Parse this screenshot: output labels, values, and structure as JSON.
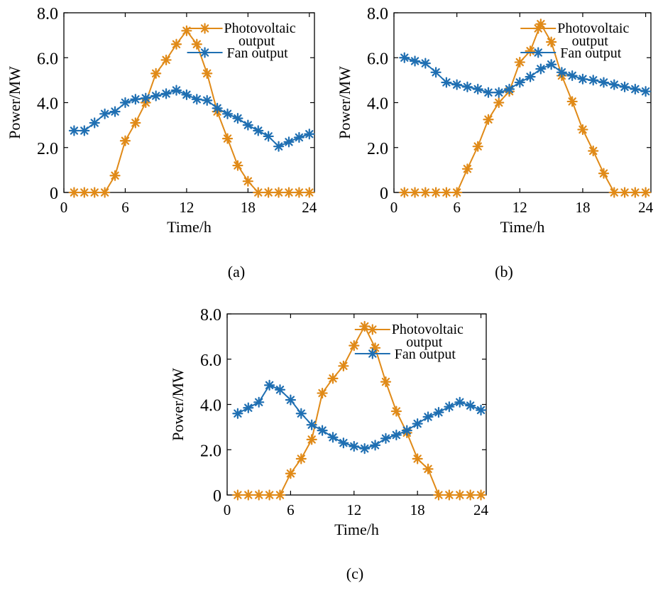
{
  "colors": {
    "pv": "#E08A18",
    "fan": "#1F6FB2"
  },
  "chart_data": [
    {
      "type": "line",
      "caption": "(a)",
      "xlabel": "Time/h",
      "ylabel": "Power/MW",
      "xlim": [
        0,
        24.5
      ],
      "ylim": [
        0,
        8
      ],
      "xticks": [
        "0",
        "6",
        "12",
        "18",
        "24"
      ],
      "yticks": [
        "0",
        "2.0",
        "4.0",
        "6.0",
        "8.0"
      ],
      "legend": [
        "Photovoltaic",
        "output",
        "Fan output"
      ],
      "x": [
        1,
        2,
        3,
        4,
        5,
        6,
        7,
        8,
        9,
        10,
        11,
        12,
        13,
        14,
        15,
        16,
        17,
        18,
        19,
        20,
        21,
        22,
        23,
        24
      ],
      "series": [
        {
          "name": "Photovoltaic output",
          "values": [
            0,
            0,
            0,
            0,
            0.75,
            2.3,
            3.1,
            4.0,
            5.3,
            5.9,
            6.6,
            7.2,
            6.6,
            5.3,
            3.6,
            2.4,
            1.2,
            0.5,
            0,
            0,
            0,
            0,
            0,
            0
          ]
        },
        {
          "name": "Fan output",
          "values": [
            2.75,
            2.75,
            3.1,
            3.5,
            3.6,
            4.0,
            4.15,
            4.2,
            4.3,
            4.4,
            4.55,
            4.35,
            4.15,
            4.1,
            3.75,
            3.5,
            3.3,
            3.0,
            2.75,
            2.5,
            2.05,
            2.25,
            2.45,
            2.6
          ]
        }
      ]
    },
    {
      "type": "line",
      "caption": "(b)",
      "xlabel": "Time/h",
      "ylabel": "Power/MW",
      "xlim": [
        0,
        24.5
      ],
      "ylim": [
        0,
        8
      ],
      "xticks": [
        "0",
        "6",
        "12",
        "18",
        "24"
      ],
      "yticks": [
        "0",
        "2.0",
        "4.0",
        "6.0",
        "8.0"
      ],
      "legend": [
        "Photovoltaic",
        "output",
        "Fan output"
      ],
      "x": [
        1,
        2,
        3,
        4,
        5,
        6,
        7,
        8,
        9,
        10,
        11,
        12,
        13,
        14,
        15,
        16,
        17,
        18,
        19,
        20,
        21,
        22,
        23,
        24
      ],
      "series": [
        {
          "name": "Photovoltaic output",
          "values": [
            0,
            0,
            0,
            0,
            0,
            0,
            1.05,
            2.05,
            3.25,
            4.0,
            4.5,
            5.8,
            6.3,
            7.5,
            6.7,
            5.2,
            4.05,
            2.8,
            1.85,
            0.85,
            0,
            0,
            0,
            0
          ]
        },
        {
          "name": "Fan output",
          "values": [
            6.0,
            5.85,
            5.75,
            5.35,
            4.9,
            4.8,
            4.7,
            4.6,
            4.45,
            4.45,
            4.6,
            4.9,
            5.15,
            5.5,
            5.7,
            5.35,
            5.2,
            5.05,
            5.0,
            4.9,
            4.8,
            4.7,
            4.6,
            4.5
          ]
        }
      ]
    },
    {
      "type": "line",
      "caption": "(c)",
      "xlabel": "Time/h",
      "ylabel": "Power/MW",
      "xlim": [
        0,
        24.5
      ],
      "ylim": [
        0,
        8
      ],
      "xticks": [
        "0",
        "6",
        "12",
        "18",
        "24"
      ],
      "yticks": [
        "0",
        "2.0",
        "4.0",
        "6.0",
        "8.0"
      ],
      "legend": [
        "Photovoltaic",
        "output",
        "Fan output"
      ],
      "x": [
        1,
        2,
        3,
        4,
        5,
        6,
        7,
        8,
        9,
        10,
        11,
        12,
        13,
        14,
        15,
        16,
        17,
        18,
        19,
        20,
        21,
        22,
        23,
        24
      ],
      "series": [
        {
          "name": "Photovoltaic output",
          "values": [
            0,
            0,
            0,
            0,
            0,
            0.95,
            1.6,
            2.45,
            4.5,
            5.15,
            5.7,
            6.6,
            7.45,
            6.5,
            5.0,
            3.7,
            2.75,
            1.6,
            1.15,
            0,
            0,
            0,
            0,
            0
          ]
        },
        {
          "name": "Fan output",
          "values": [
            3.6,
            3.85,
            4.1,
            4.85,
            4.65,
            4.2,
            3.6,
            3.1,
            2.85,
            2.55,
            2.3,
            2.15,
            2.05,
            2.2,
            2.5,
            2.65,
            2.85,
            3.15,
            3.45,
            3.65,
            3.9,
            4.1,
            3.95,
            3.75
          ]
        }
      ]
    }
  ]
}
